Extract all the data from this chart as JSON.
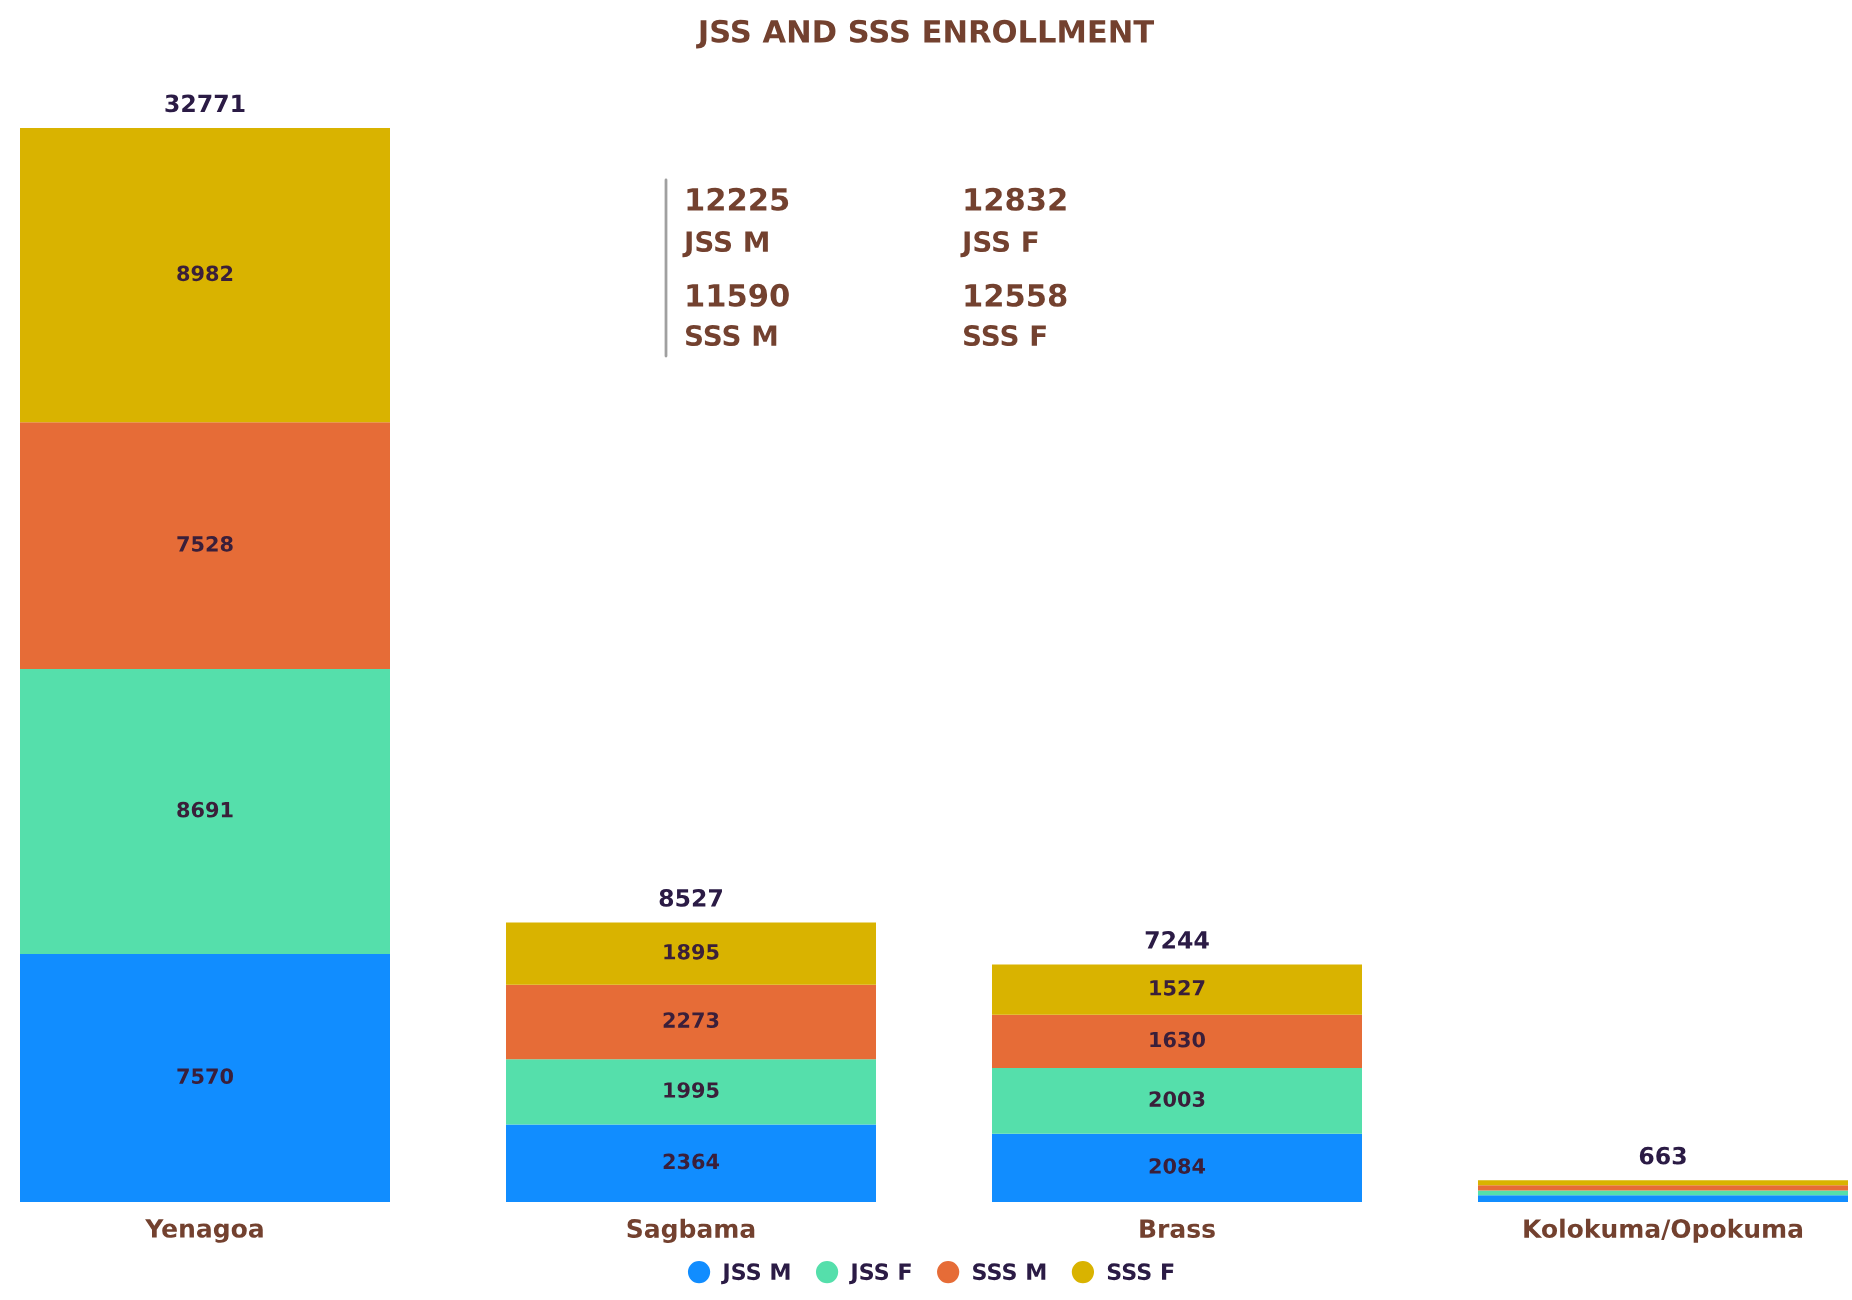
{
  "chart_data": {
    "type": "bar",
    "title": "JSS AND SSS ENROLLMENT",
    "categories": [
      "Yenagoa",
      "Sagbama",
      "Brass",
      "Kolokuma/Opokuma"
    ],
    "stacked": true,
    "series": [
      {
        "name": "JSS M",
        "color": "#118dff",
        "values": [
          7570,
          2364,
          2084,
          207
        ],
        "value_labels": [
          "7570",
          "2364",
          "2084",
          null
        ]
      },
      {
        "name": "JSS F",
        "color": "#55dfab",
        "values": [
          8691,
          1995,
          2003,
          143
        ],
        "value_labels": [
          "8691",
          "1995",
          "2003",
          null
        ]
      },
      {
        "name": "SSS M",
        "color": "#e66c37",
        "values": [
          7528,
          2273,
          1630,
          159
        ],
        "value_labels": [
          "7528",
          "2273",
          "1630",
          null
        ]
      },
      {
        "name": "SSS F",
        "color": "#d9b300",
        "values": [
          8982,
          1895,
          1527,
          154
        ],
        "value_labels": [
          "8982",
          "1895",
          "1527",
          null
        ]
      }
    ],
    "totals": [
      "32771",
      "8527",
      "7244",
      "663"
    ],
    "annotations": [
      "12225",
      "JSS M",
      "12832",
      "JSS F",
      "11590",
      "SSS M",
      "12558",
      "SSS F"
    ],
    "tick_labels": "x",
    "legend": "bottom",
    "grid": false
  }
}
